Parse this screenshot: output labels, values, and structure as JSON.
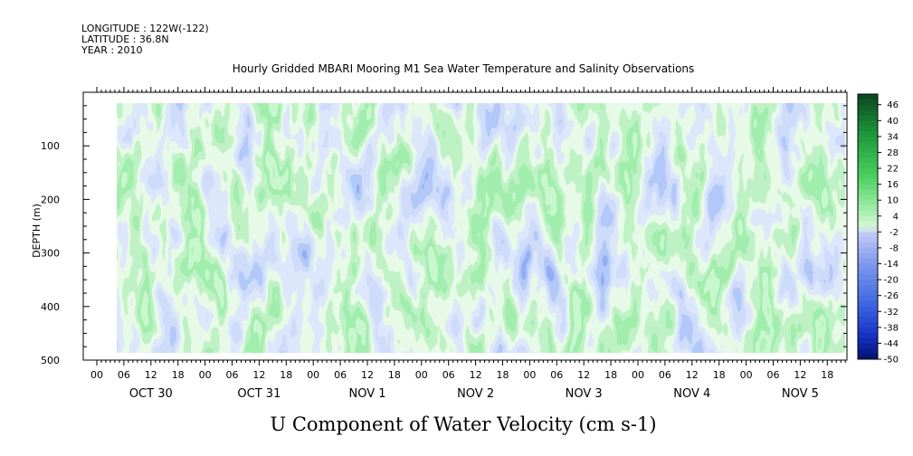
{
  "header": {
    "longitude": "LONGITUDE : 122W(-122)",
    "latitude": "LATITUDE : 36.8N",
    "year": "YEAR : 2010"
  },
  "chart_data": {
    "type": "heatmap",
    "title": "Hourly Gridded MBARI Mooring M1 Sea Water Temperature and Salinity Observations",
    "xlabel": "U Component of Water Velocity (cm s-1)",
    "ylabel": "DEPTH (m)",
    "ylim": [
      500,
      0
    ],
    "y_ticks": [
      100,
      200,
      300,
      400,
      500
    ],
    "y_tick_labels": [
      "100",
      "200",
      "300",
      "400",
      "500"
    ],
    "x_hour_tick_labels": [
      "00",
      "06",
      "12",
      "18",
      "00",
      "06",
      "12",
      "18",
      "00",
      "06",
      "12",
      "18",
      "00",
      "06",
      "12",
      "18",
      "00",
      "06",
      "12",
      "18",
      "00",
      "06",
      "12",
      "18",
      "00",
      "06",
      "12",
      "18"
    ],
    "x_day_labels": [
      "OCT 30",
      "OCT 31",
      "NOV  1",
      "NOV  2",
      "NOV  3",
      "NOV  4",
      "NOV  5"
    ],
    "data_depth_range": [
      20,
      490
    ],
    "colorbar": {
      "labels": [
        "46",
        "40",
        "34",
        "28",
        "22",
        "16",
        "10",
        "4",
        "-2",
        "-8",
        "-14",
        "-20",
        "-26",
        "-32",
        "-38",
        "-44",
        "-50"
      ],
      "min": -50,
      "max": 50
    }
  }
}
